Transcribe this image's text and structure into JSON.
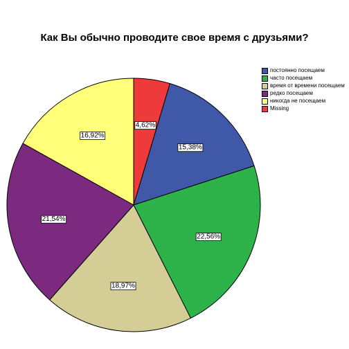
{
  "chart_data": {
    "type": "pie",
    "title": "Как Вы обычно проводите свое время с друзьями?",
    "categories": [
      "Missing",
      "постоянно посещаем",
      "часто посещаем",
      "время от времени посещаем",
      "редко посещаем",
      "никогда не посещаем"
    ],
    "values": [
      4.62,
      15.38,
      22.56,
      18.97,
      21.54,
      16.92
    ],
    "labels": [
      "4,62%",
      "15,38%",
      "22,56%",
      "18,97%",
      "21,54%",
      "16,92%"
    ],
    "colors": [
      "#EE3A3A",
      "#3F58A8",
      "#2DB34A",
      "#D4CE96",
      "#7B2A7F",
      "#FFFF7A"
    ],
    "legend_order": [
      1,
      2,
      3,
      4,
      5,
      0
    ],
    "legend_position": "right",
    "unit": "%"
  }
}
